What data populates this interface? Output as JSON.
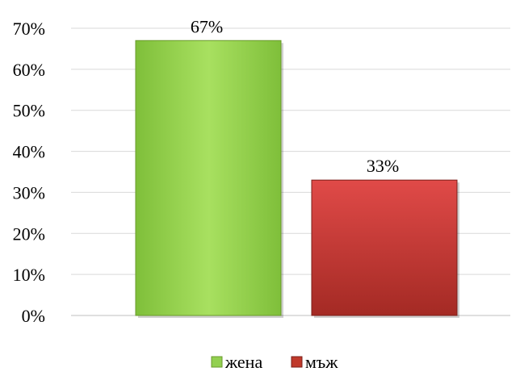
{
  "chart_data": {
    "type": "bar",
    "title": "",
    "xlabel": "",
    "ylabel": "",
    "categories": [
      "жена",
      "мъж"
    ],
    "values": [
      67,
      33
    ],
    "data_labels": [
      "67%",
      "33%"
    ],
    "colors": [
      "#92d050",
      "#c0392b"
    ],
    "ylim": [
      0,
      70
    ],
    "yticks": [
      0,
      10,
      20,
      30,
      40,
      50,
      60,
      70
    ],
    "ytick_labels": [
      "0%",
      "10%",
      "20%",
      "30%",
      "40%",
      "50%",
      "60%",
      "70%"
    ],
    "grid": true,
    "legend": {
      "position": "bottom",
      "entries": [
        "жена",
        "мъж"
      ]
    }
  }
}
